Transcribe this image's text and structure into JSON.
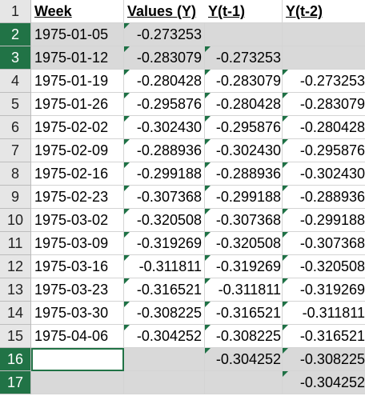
{
  "columns": {
    "week": "Week",
    "values": "Values (Y)",
    "lag1": "Y(t-1)",
    "lag2": "Y(t-2)"
  },
  "rows": [
    {
      "n": "2",
      "week": "1975-01-05",
      "y": "-0.273253",
      "y1": "",
      "y2": ""
    },
    {
      "n": "3",
      "week": "1975-01-12",
      "y": "-0.283079",
      "y1": "-0.273253",
      "y2": ""
    },
    {
      "n": "4",
      "week": "1975-01-19",
      "y": "-0.280428",
      "y1": "-0.283079",
      "y2": "-0.273253"
    },
    {
      "n": "5",
      "week": "1975-01-26",
      "y": "-0.295876",
      "y1": "-0.280428",
      "y2": "-0.283079"
    },
    {
      "n": "6",
      "week": "1975-02-02",
      "y": "-0.302430",
      "y1": "-0.295876",
      "y2": "-0.280428"
    },
    {
      "n": "7",
      "week": "1975-02-09",
      "y": "-0.288936",
      "y1": "-0.302430",
      "y2": "-0.295876"
    },
    {
      "n": "8",
      "week": "1975-02-16",
      "y": "-0.299188",
      "y1": "-0.288936",
      "y2": "-0.302430"
    },
    {
      "n": "9",
      "week": "1975-02-23",
      "y": "-0.307368",
      "y1": "-0.299188",
      "y2": "-0.288936"
    },
    {
      "n": "10",
      "week": "1975-03-02",
      "y": "-0.320508",
      "y1": "-0.307368",
      "y2": "-0.299188"
    },
    {
      "n": "11",
      "week": "1975-03-09",
      "y": "-0.319269",
      "y1": "-0.320508",
      "y2": "-0.307368"
    },
    {
      "n": "12",
      "week": "1975-03-16",
      "y": "-0.311811",
      "y1": "-0.319269",
      "y2": "-0.320508"
    },
    {
      "n": "13",
      "week": "1975-03-23",
      "y": "-0.316521",
      "y1": "-0.311811",
      "y2": "-0.319269"
    },
    {
      "n": "14",
      "week": "1975-03-30",
      "y": "-0.308225",
      "y1": "-0.316521",
      "y2": "-0.311811"
    },
    {
      "n": "15",
      "week": "1975-04-06",
      "y": "-0.304252",
      "y1": "-0.308225",
      "y2": "-0.316521"
    },
    {
      "n": "16",
      "week": "",
      "y": "",
      "y1": "-0.304252",
      "y2": "-0.308225"
    },
    {
      "n": "17",
      "week": "",
      "y": "",
      "y1": "",
      "y2": "-0.304252"
    }
  ],
  "header_row_number": "1",
  "colors": {
    "selection_green": "#217346",
    "selected_fill": "#d9d9d9",
    "error_indicator": "#1e7145"
  }
}
